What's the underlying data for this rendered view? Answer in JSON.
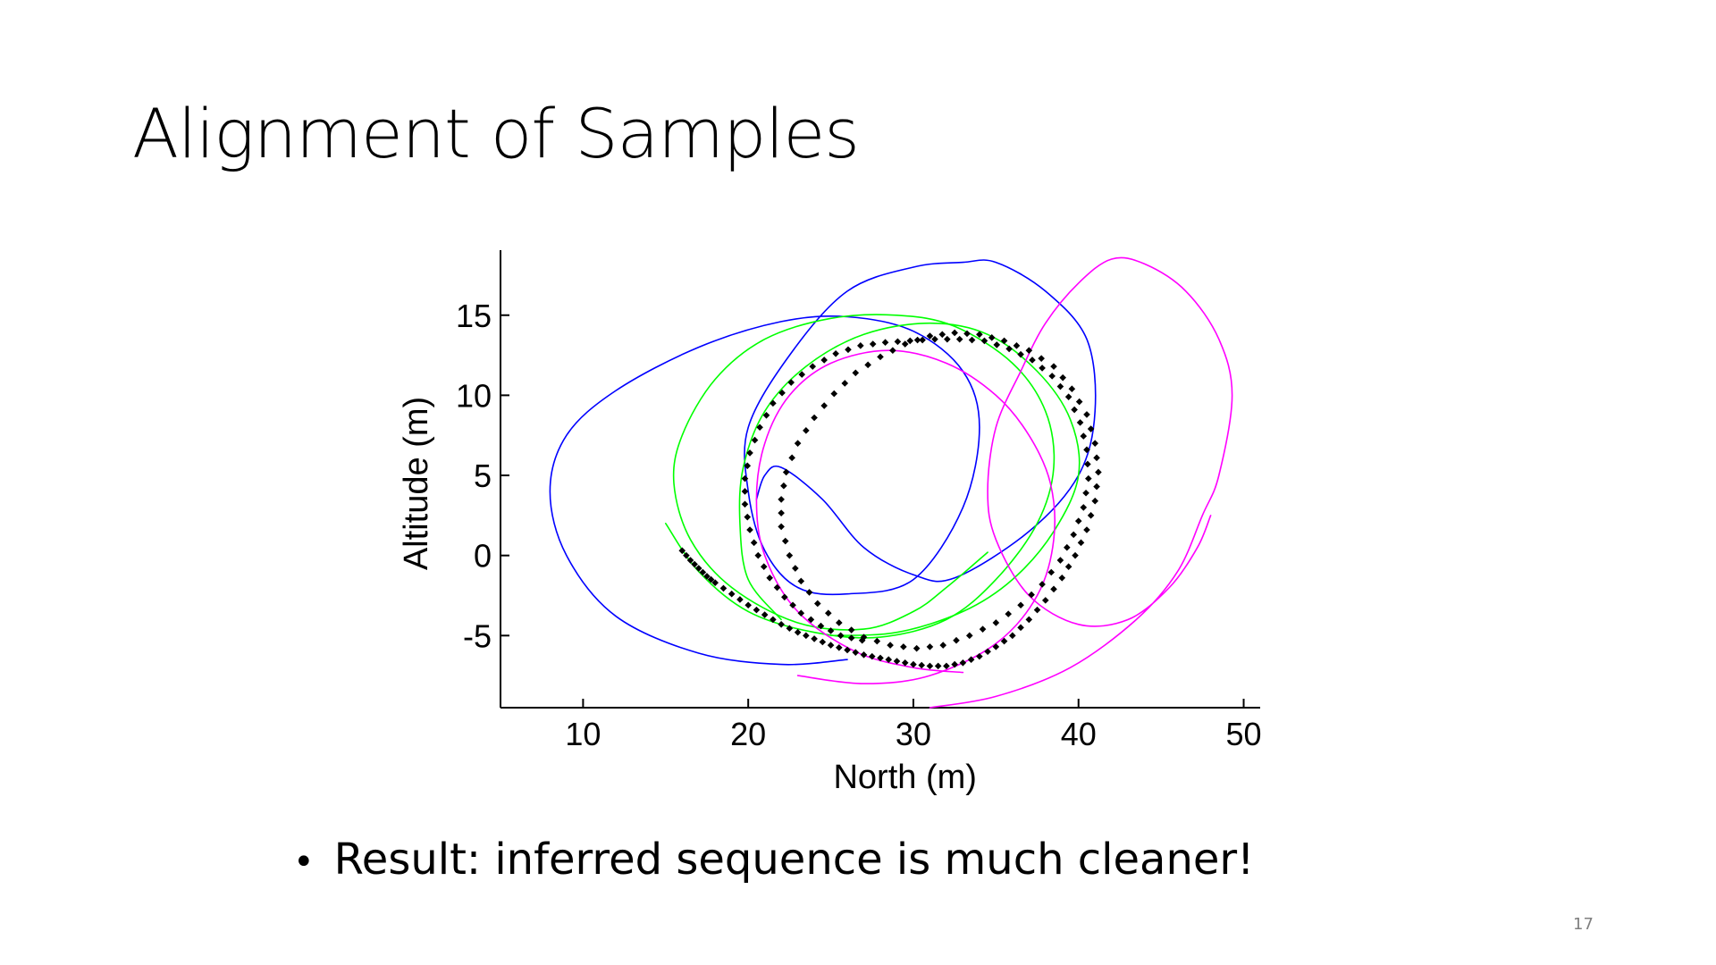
{
  "slide": {
    "title": "Alignment of Samples",
    "bullet_symbol": "•",
    "bullet_text": "Result: inferred sequence is much cleaner!",
    "page_number": "17"
  },
  "chart_data": {
    "type": "line",
    "title": "",
    "xlabel": "North (m)",
    "ylabel": "Altitude (m)",
    "xlim": [
      5,
      51
    ],
    "ylim": [
      -9.5,
      18.5
    ],
    "xticks": [
      10,
      20,
      30,
      40,
      50
    ],
    "yticks": [
      -5,
      0,
      5,
      10,
      15
    ],
    "grid": false,
    "legend": "none",
    "series": [
      {
        "color": "#0000ff",
        "style": "line",
        "points": [
          [
            26,
            -6.5
          ],
          [
            22,
            -6.8
          ],
          [
            17,
            -6.1
          ],
          [
            12,
            -3.8
          ],
          [
            9,
            0
          ],
          [
            8,
            4
          ],
          [
            9,
            7.5
          ],
          [
            12,
            10.3
          ],
          [
            17,
            13
          ],
          [
            22,
            14.6
          ],
          [
            26,
            14.9
          ],
          [
            30,
            14
          ],
          [
            33,
            11.5
          ],
          [
            34,
            8
          ],
          [
            33,
            3
          ],
          [
            30,
            -1.5
          ],
          [
            26,
            -2.4
          ],
          [
            23,
            -2
          ],
          [
            21,
            0.3
          ],
          [
            20,
            4
          ],
          [
            20,
            8
          ],
          [
            22.5,
            12.5
          ],
          [
            26,
            16.5
          ],
          [
            30,
            18
          ],
          [
            33,
            18.3
          ],
          [
            35,
            18.3
          ],
          [
            38,
            16.5
          ],
          [
            40.5,
            13.5
          ],
          [
            41,
            9
          ],
          [
            40,
            5
          ],
          [
            37,
            1.5
          ],
          [
            32.5,
            -1.4
          ],
          [
            30,
            -1.2
          ],
          [
            27,
            0.5
          ],
          [
            24.5,
            3.5
          ],
          [
            22,
            5.5
          ],
          [
            21,
            5
          ],
          [
            20.5,
            3.5
          ]
        ]
      },
      {
        "color": "#00ff00",
        "style": "line",
        "points": [
          [
            15,
            2
          ],
          [
            17,
            -1
          ],
          [
            20,
            -3.5
          ],
          [
            24,
            -4.8
          ],
          [
            28,
            -5.1
          ],
          [
            32,
            -4
          ],
          [
            35,
            -1.5
          ],
          [
            37.5,
            2
          ],
          [
            38.5,
            5.5
          ],
          [
            38,
            9
          ],
          [
            36,
            12
          ],
          [
            32.5,
            14.3
          ],
          [
            29,
            15
          ],
          [
            25,
            14.8
          ],
          [
            21,
            13.5
          ],
          [
            18,
            11
          ],
          [
            16,
            7.5
          ],
          [
            15.5,
            4.5
          ],
          [
            16.5,
            1
          ],
          [
            19,
            -2
          ],
          [
            23,
            -4.2
          ],
          [
            27,
            -4.6
          ],
          [
            30,
            -3.5
          ],
          [
            32,
            -2
          ],
          [
            34.5,
            0.2
          ]
        ]
      },
      {
        "color": "#00ff00",
        "style": "line",
        "points": [
          [
            22,
            -4
          ],
          [
            20,
            -1.5
          ],
          [
            19.5,
            2
          ],
          [
            19.7,
            5.5
          ],
          [
            21,
            9
          ],
          [
            23.5,
            11.8
          ],
          [
            27,
            13.8
          ],
          [
            31,
            14.5
          ],
          [
            34.5,
            13.8
          ],
          [
            37.5,
            11.5
          ],
          [
            39.5,
            8.5
          ],
          [
            40,
            5
          ],
          [
            38.5,
            1.5
          ],
          [
            36,
            -1.5
          ],
          [
            33,
            -3.5
          ],
          [
            29,
            -4.8
          ],
          [
            25,
            -5
          ]
        ]
      },
      {
        "color": "#ff00ff",
        "style": "line",
        "points": [
          [
            23,
            -7.5
          ],
          [
            27,
            -8
          ],
          [
            31,
            -7.5
          ],
          [
            35,
            -5.5
          ],
          [
            37.5,
            -2.5
          ],
          [
            38.5,
            1
          ],
          [
            38.3,
            4.5
          ],
          [
            37,
            7.5
          ],
          [
            35,
            10
          ],
          [
            32,
            12
          ],
          [
            28.5,
            12.8
          ],
          [
            25,
            12
          ],
          [
            22.5,
            10
          ],
          [
            21,
            7
          ],
          [
            20.5,
            3.5
          ],
          [
            21,
            0
          ],
          [
            23,
            -3.5
          ],
          [
            26.5,
            -6
          ],
          [
            30,
            -7
          ],
          [
            33,
            -7.3
          ]
        ],
        "note_points_pair": [
          [
            33,
            -7.3
          ]
        ]
      },
      {
        "color": "#ff00ff",
        "style": "line",
        "points": [
          [
            31,
            -9.5
          ],
          [
            35,
            -8.8
          ],
          [
            39.5,
            -7
          ],
          [
            43.5,
            -4
          ],
          [
            46,
            -1
          ],
          [
            47.5,
            2.5
          ],
          [
            48.5,
            5
          ],
          [
            49.3,
            10
          ],
          [
            48.5,
            13.5
          ],
          [
            46.5,
            16.5
          ],
          [
            44,
            18.2
          ],
          [
            42,
            18.5
          ],
          [
            40,
            17
          ],
          [
            38,
            14.5
          ],
          [
            36.5,
            11.5
          ],
          [
            35,
            8
          ],
          [
            34.5,
            4
          ],
          [
            35,
            1
          ],
          [
            37,
            -2.5
          ],
          [
            40,
            -4.3
          ],
          [
            43,
            -4
          ],
          [
            45.5,
            -2
          ],
          [
            47.2,
            0.5
          ],
          [
            48,
            2.5
          ]
        ]
      },
      {
        "color": "#000000",
        "style": "markers",
        "points": [
          [
            16,
            0.3
          ],
          [
            16.5,
            -0.3
          ],
          [
            17,
            -0.8
          ],
          [
            17.5,
            -1.3
          ],
          [
            18,
            -1.7
          ],
          [
            19,
            -2.4
          ],
          [
            20,
            -3.1
          ],
          [
            21,
            -3.7
          ],
          [
            22,
            -4.3
          ],
          [
            23,
            -4.8
          ],
          [
            24,
            -5.2
          ],
          [
            25,
            -5.6
          ],
          [
            26,
            -5.9
          ],
          [
            27,
            -6.2
          ],
          [
            28,
            -6.4
          ],
          [
            29,
            -6.6
          ],
          [
            30,
            -6.8
          ],
          [
            31,
            -6.9
          ],
          [
            32,
            -6.9
          ],
          [
            33,
            -6.7
          ],
          [
            34,
            -6.3
          ],
          [
            35,
            -5.7
          ],
          [
            36,
            -5
          ],
          [
            37,
            -4
          ],
          [
            38,
            -2.8
          ],
          [
            39,
            -1.4
          ],
          [
            39.8,
            0
          ],
          [
            40.5,
            1.6
          ],
          [
            41,
            3.4
          ],
          [
            41.2,
            5.2
          ],
          [
            41,
            7
          ],
          [
            40.5,
            8.8
          ],
          [
            39.6,
            10.4
          ],
          [
            38.5,
            11.8
          ],
          [
            37,
            12.8
          ],
          [
            35.5,
            13.4
          ],
          [
            34,
            13.8
          ],
          [
            32.5,
            13.9
          ],
          [
            31,
            13.7
          ],
          [
            29.5,
            13.2
          ],
          [
            28,
            12.4
          ],
          [
            26.5,
            11.4
          ],
          [
            25.2,
            10.1
          ],
          [
            24,
            8.6
          ],
          [
            23,
            7
          ],
          [
            22.3,
            5.2
          ],
          [
            22,
            3.5
          ],
          [
            22,
            1.8
          ],
          [
            22.5,
            0
          ],
          [
            23.2,
            -1.6
          ],
          [
            24.2,
            -3
          ],
          [
            25.5,
            -4.2
          ],
          [
            27,
            -5.1
          ],
          [
            28.6,
            -5.6
          ],
          [
            30.2,
            -5.8
          ],
          [
            31.8,
            -5.6
          ],
          [
            33.4,
            -5
          ],
          [
            35,
            -4.2
          ],
          [
            36.5,
            -3.1
          ],
          [
            37.8,
            -1.8
          ],
          [
            38.9,
            -0.3
          ],
          [
            39.7,
            1.3
          ],
          [
            40.3,
            3
          ],
          [
            40.6,
            4.8
          ],
          [
            40.5,
            6.6
          ],
          [
            40.1,
            8.3
          ],
          [
            39.4,
            9.9
          ],
          [
            38.4,
            11.2
          ],
          [
            37.2,
            12.2
          ],
          [
            35.8,
            12.9
          ],
          [
            34.3,
            13.4
          ],
          [
            32.8,
            13.5
          ],
          [
            31.3,
            13.5
          ],
          [
            29.8,
            13.4
          ],
          [
            28.3,
            13.3
          ],
          [
            26.8,
            13.1
          ],
          [
            25.3,
            12.6
          ],
          [
            23.9,
            11.8
          ],
          [
            22.6,
            10.8
          ],
          [
            21.5,
            9.5
          ],
          [
            20.7,
            8
          ],
          [
            20.1,
            6.4
          ],
          [
            19.8,
            4.8
          ],
          [
            19.8,
            3.2
          ],
          [
            20.1,
            1.6
          ],
          [
            20.6,
            0
          ],
          [
            21.3,
            -1.4
          ],
          [
            22.2,
            -2.6
          ],
          [
            23.2,
            -3.6
          ],
          [
            24.4,
            -4.4
          ],
          [
            25.6,
            -5
          ],
          [
            26.9,
            -5.3
          ]
        ]
      }
    ]
  }
}
